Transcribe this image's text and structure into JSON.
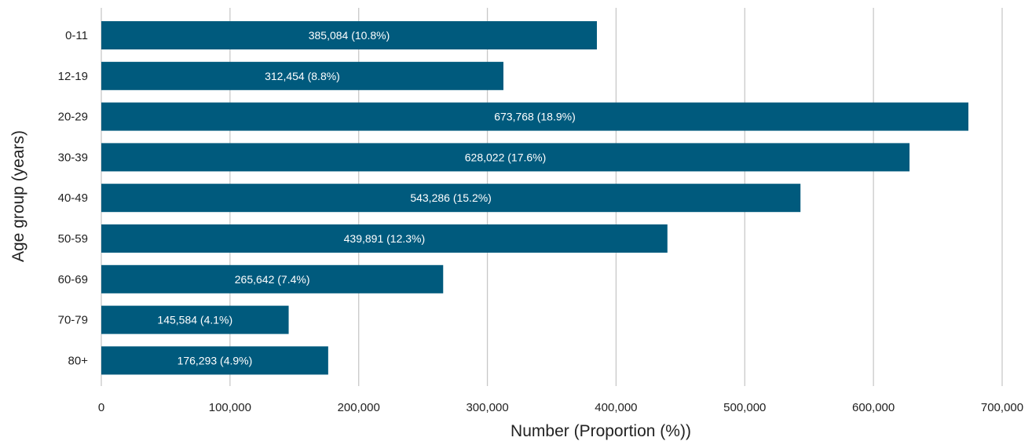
{
  "chart_data": {
    "type": "bar",
    "orientation": "horizontal",
    "categories": [
      "0-11",
      "12-19",
      "20-29",
      "30-39",
      "40-49",
      "50-59",
      "60-69",
      "70-79",
      "80+"
    ],
    "values": [
      385084,
      312454,
      673768,
      628022,
      543286,
      439891,
      265642,
      145584,
      176293
    ],
    "data_labels": [
      "385,084 (10.8%)",
      "312,454 (8.8%)",
      "673,768 (18.9%)",
      "628,022 (17.6%)",
      "543,286 (15.2%)",
      "439,891 (12.3%)",
      "265,642 (7.4%)",
      "145,584 (4.1%)",
      "176,293 (4.9%)"
    ],
    "xlabel": "Number (Proportion (%))",
    "ylabel": "Age group (years)",
    "xlim": [
      0,
      700000
    ],
    "x_ticks": [
      0,
      100000,
      200000,
      300000,
      400000,
      500000,
      600000,
      700000
    ],
    "x_tick_labels": [
      "0",
      "100,000",
      "200,000",
      "300,000",
      "400,000",
      "500,000",
      "600,000",
      "700,000"
    ],
    "grid": "vertical",
    "bar_color": "#005a7d",
    "grid_color": "#c8c8c8"
  }
}
